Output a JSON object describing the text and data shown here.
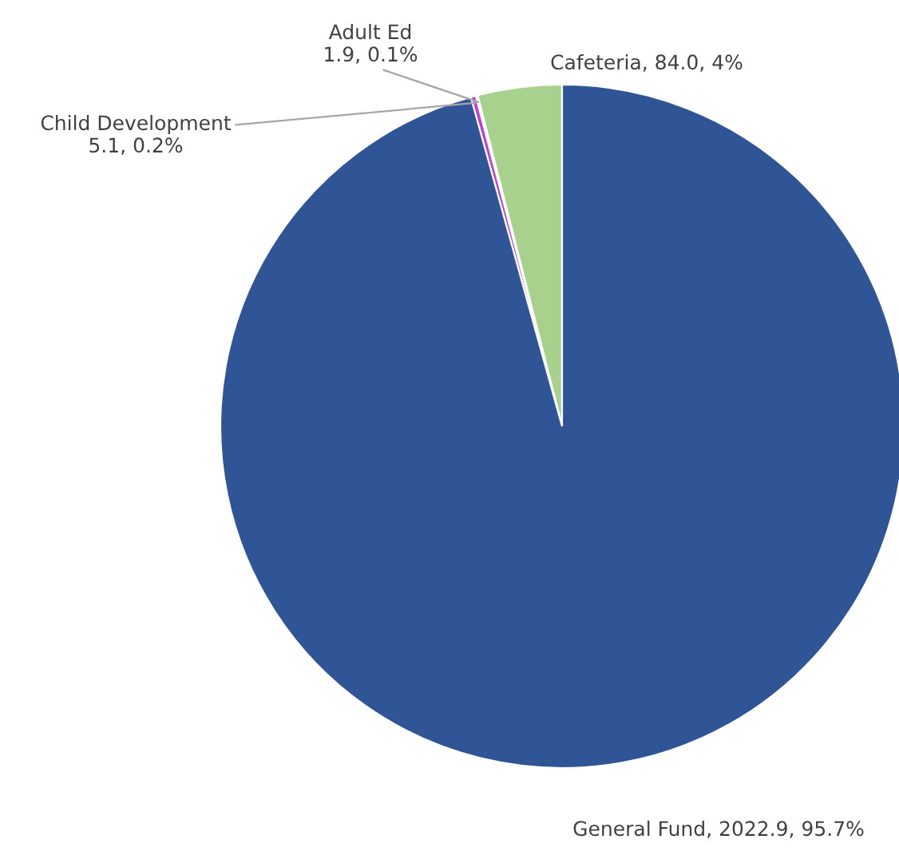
{
  "chart_data": {
    "type": "pie",
    "categories": [
      "Cafeteria",
      "Adult Ed",
      "Child Development",
      "General Fund"
    ],
    "values": [
      84.0,
      1.9,
      5.1,
      2022.9
    ],
    "value_labels": [
      "84.0, 4%",
      "1.9, 0.1%",
      "5.1, 0.2%",
      "2022.9, 95.7%"
    ],
    "colors": [
      "#a9d18e",
      "#c9c9c9",
      "#c03fd6",
      "#2f5597"
    ]
  }
}
